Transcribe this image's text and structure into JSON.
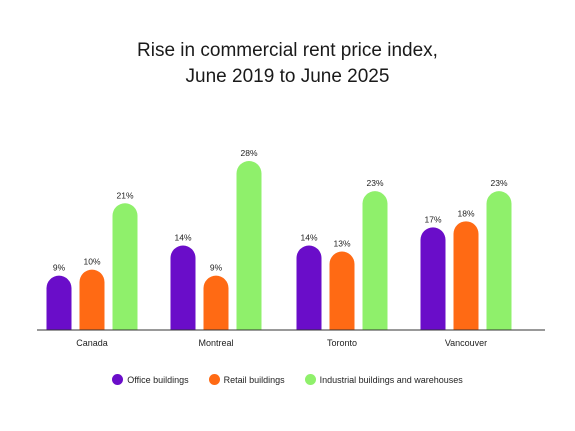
{
  "chart_data": {
    "type": "bar",
    "title_line1": "Rise in commercial rent price index,",
    "title_line2": "June 2019 to June 2025",
    "categories": [
      "Canada",
      "Montreal",
      "Toronto",
      "Vancouver"
    ],
    "series": [
      {
        "name": "Office buildings",
        "values": [
          9,
          14,
          14,
          17
        ],
        "labels": [
          "9%",
          "14%",
          "14%",
          "17%"
        ],
        "color": "#6a0dc9"
      },
      {
        "name": "Retail buildings",
        "values": [
          10,
          9,
          13,
          18
        ],
        "labels": [
          "10%",
          "9%",
          "13%",
          "18%"
        ],
        "color": "#ff6a14"
      },
      {
        "name": "Industrial buildings and warehouses",
        "values": [
          21,
          28,
          23,
          23
        ],
        "labels": [
          "21%",
          "28%",
          "23%",
          "23%"
        ],
        "color": "#8ff06b"
      }
    ],
    "ylim": [
      0,
      28
    ],
    "grid": false,
    "legend_position": "bottom"
  }
}
